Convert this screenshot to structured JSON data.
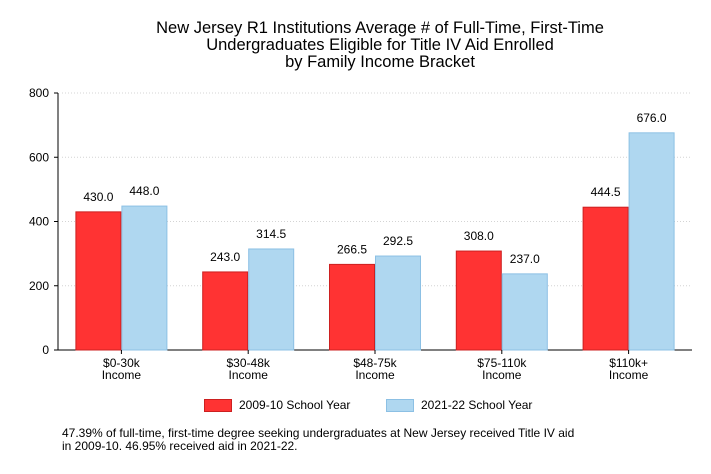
{
  "chart_data": {
    "type": "bar",
    "title_lines": [
      "New Jersey R1 Institutions Average # of Full-Time, First-Time",
      "Undergraduates Eligible for Title IV Aid Enrolled",
      "by Family Income Bracket"
    ],
    "categories": [
      [
        "$0-30k",
        "Income"
      ],
      [
        "$30-48k",
        "Income"
      ],
      [
        "$48-75k",
        "Income"
      ],
      [
        "$75-110k",
        "Income"
      ],
      [
        "$110k+",
        "Income"
      ]
    ],
    "series": [
      {
        "name": "2009-10 School Year",
        "values": [
          430.0,
          243.0,
          266.5,
          308.0,
          444.5
        ],
        "labels": [
          "430.0",
          "243.0",
          "266.5",
          "308.0",
          "444.5"
        ],
        "color": "#ff3333",
        "border": "#cc2020"
      },
      {
        "name": "2021-22 School Year",
        "values": [
          448.0,
          314.5,
          292.5,
          237.0,
          676.0
        ],
        "labels": [
          "448.0",
          "314.5",
          "292.5",
          "237.0",
          "676.0"
        ],
        "color": "#afd7f0",
        "border": "#8cc0e4"
      }
    ],
    "ylim": [
      0,
      800
    ],
    "yticks": [
      0,
      200,
      400,
      600,
      800
    ],
    "ytick_labels": [
      "0",
      "200",
      "400",
      "600",
      "800"
    ],
    "grid": true,
    "legend_position": "bottom"
  },
  "footnote_lines": [
    "47.39% of full-time, first-time degree seeking undergraduates at New Jersey received Title IV aid",
    "in 2009-10. 46.95% received aid in 2021-22."
  ]
}
